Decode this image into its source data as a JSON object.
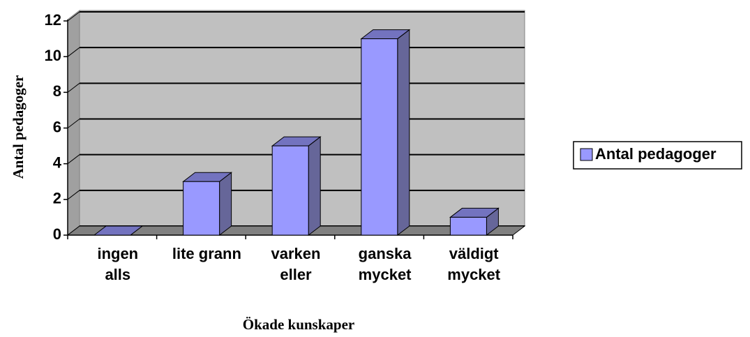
{
  "chart_data": {
    "type": "bar3d",
    "x_label": "Ökade kunskaper",
    "y_label": "Antal pedagoger",
    "categories": [
      "ingen\nalls",
      "lite grann",
      "varken\neller",
      "ganska\nmycket",
      "väldigt\nmycket"
    ],
    "series": [
      {
        "name": "Antal pedagoger",
        "color": "#9999ff",
        "values": [
          0,
          3,
          5,
          11,
          1
        ]
      }
    ],
    "ylim": [
      0,
      12
    ],
    "yticks": [
      0,
      2,
      4,
      6,
      8,
      10,
      12
    ],
    "grid": true,
    "legend": "right"
  }
}
